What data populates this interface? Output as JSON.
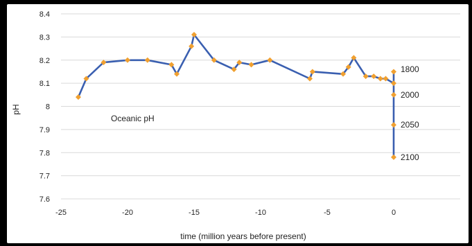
{
  "chart_data": {
    "type": "line",
    "title": "",
    "xlabel": "time (million years before present)",
    "ylabel": "pH",
    "xlim": [
      -25,
      5
    ],
    "ylim": [
      7.6,
      8.4
    ],
    "x_ticks": [
      "-25",
      "-20",
      "-15",
      "-10",
      "-5",
      "0"
    ],
    "y_ticks": [
      "7.6",
      "7.7",
      "7.8",
      "7.9",
      "8",
      "8.1",
      "8.2",
      "8.3",
      "8.4"
    ],
    "grid": "horizontal",
    "colors": {
      "line": "#3a5fb0",
      "marker": "#f0a030",
      "grid": "#d9d9d9"
    },
    "annotation": "Oceanic pH",
    "series": [
      {
        "x": [
          -23.7,
          -23.1,
          -21.8,
          -20.0,
          -18.5,
          -16.7,
          -16.3,
          -15.2,
          -15.0,
          -13.5,
          -12.0,
          -11.6,
          -10.7,
          -9.3,
          -6.3,
          -6.1,
          -3.8,
          -3.4,
          -3.0,
          -2.1,
          -1.5,
          -1.0,
          -0.6,
          0,
          0,
          0,
          0,
          0
        ],
        "y": [
          8.04,
          8.12,
          8.19,
          8.2,
          8.2,
          8.18,
          8.14,
          8.26,
          8.31,
          8.2,
          8.16,
          8.19,
          8.18,
          8.2,
          8.12,
          8.15,
          8.14,
          8.17,
          8.21,
          8.13,
          8.13,
          8.12,
          8.12,
          8.1,
          8.15,
          8.05,
          7.92,
          7.78
        ]
      }
    ],
    "year_labels": [
      {
        "label": "1800",
        "y": 8.16
      },
      {
        "label": "2000",
        "y": 8.05
      },
      {
        "label": "2050",
        "y": 7.92
      },
      {
        "label": "2100",
        "y": 7.78
      }
    ]
  }
}
